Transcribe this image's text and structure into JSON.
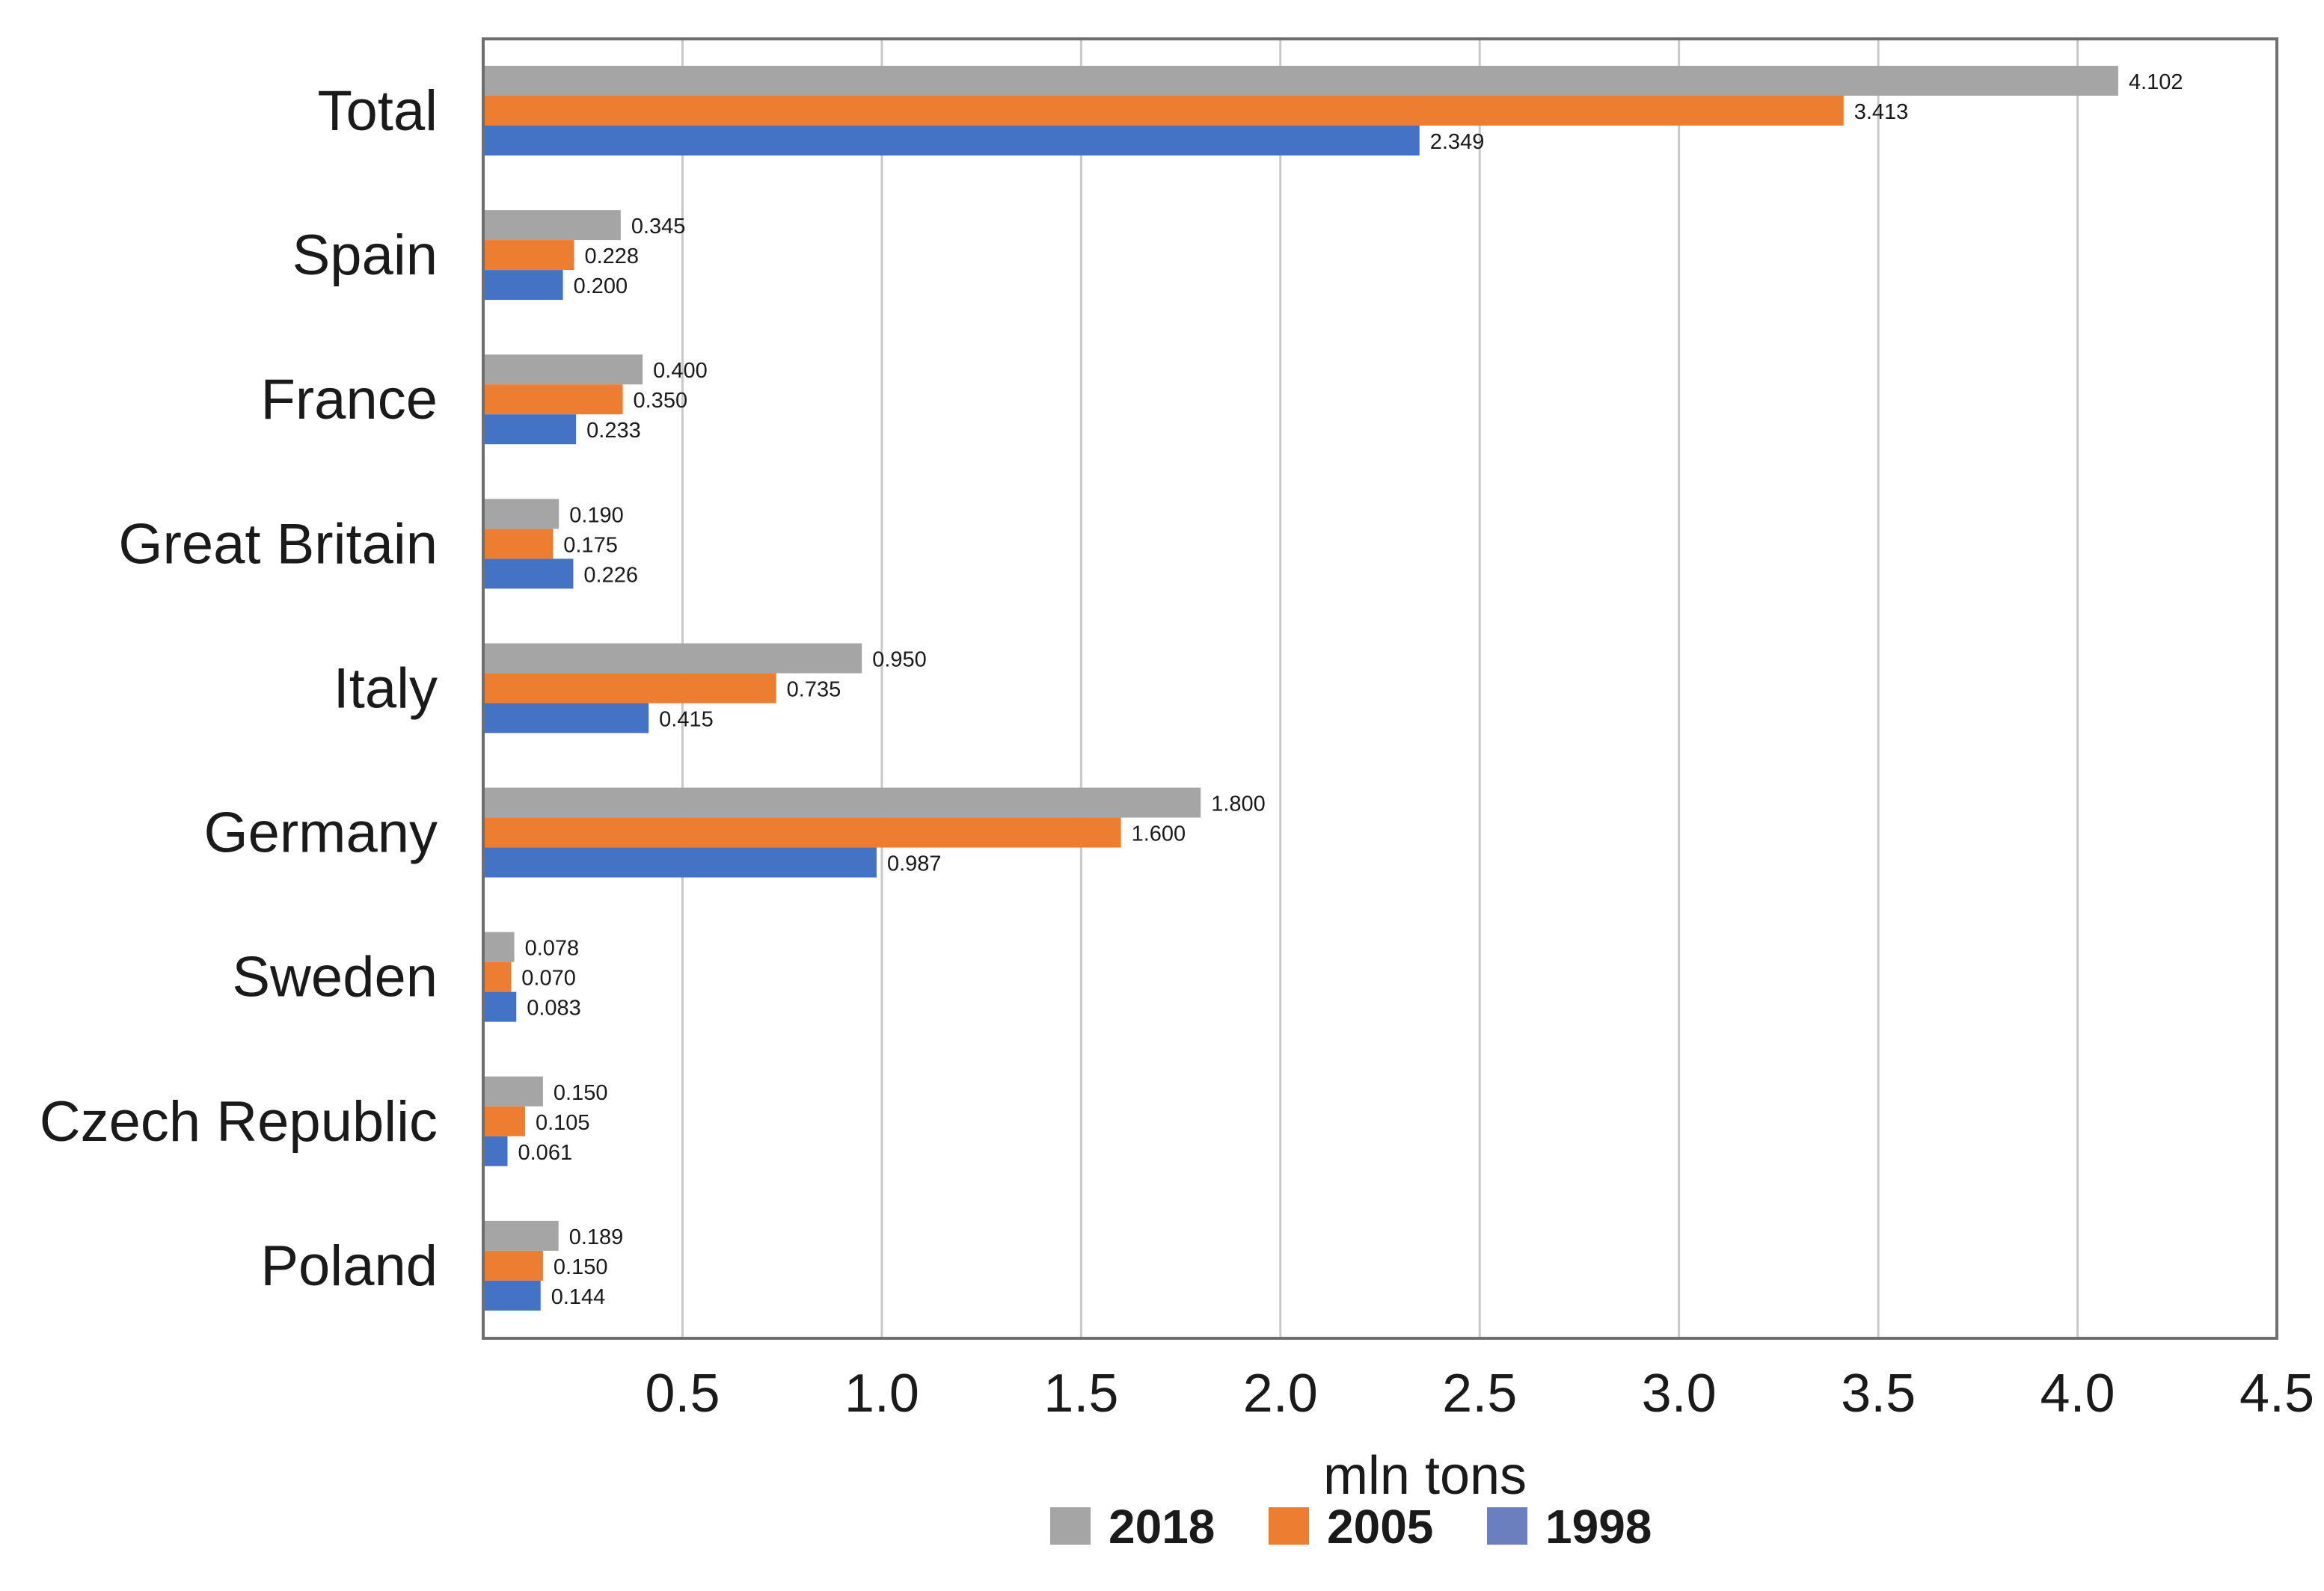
{
  "chart_data": {
    "type": "bar",
    "orientation": "horizontal",
    "title": "",
    "xlabel": "mln tons",
    "ylabel": "",
    "xlim": [
      0,
      4.5
    ],
    "xticks": [
      "0.5",
      "1.0",
      "1.5",
      "2.0",
      "2.5",
      "3.0",
      "3.5",
      "4.0",
      "4.5"
    ],
    "grid": true,
    "legend_position": "bottom",
    "categories": [
      "Total",
      "Spain",
      "France",
      "Great Britain",
      "Italy",
      "Germany",
      "Sweden",
      "Czech Republic",
      "Poland"
    ],
    "series": [
      {
        "name": "2018",
        "color": "#a5a5a5",
        "values": [
          4.102,
          0.345,
          0.4,
          0.19,
          0.95,
          1.8,
          0.078,
          0.15,
          0.189
        ],
        "labels": [
          "4.102",
          "0.345",
          "0.400",
          "0.190",
          "0.950",
          "1.800",
          "0.078",
          "0.150",
          "0.189"
        ]
      },
      {
        "name": "2005",
        "color": "#ed7d31",
        "values": [
          3.413,
          0.228,
          0.35,
          0.175,
          0.735,
          1.6,
          0.07,
          0.105,
          0.15
        ],
        "labels": [
          "3.413",
          "0.228",
          "0.350",
          "0.175",
          "0.735",
          "1.600",
          "0.070",
          "0.105",
          "0.150"
        ]
      },
      {
        "name": "1998",
        "color": "#4472c4",
        "values": [
          2.349,
          0.2,
          0.233,
          0.226,
          0.415,
          0.987,
          0.083,
          0.061,
          0.144
        ],
        "labels": [
          "2.349",
          "0.200",
          "0.233",
          "0.226",
          "0.415",
          "0.987",
          "0.083",
          "0.061",
          "0.144"
        ]
      }
    ],
    "legend_swatch_colors": [
      "#a5a5a5",
      "#ed7d31",
      "#6b7fbf"
    ]
  }
}
